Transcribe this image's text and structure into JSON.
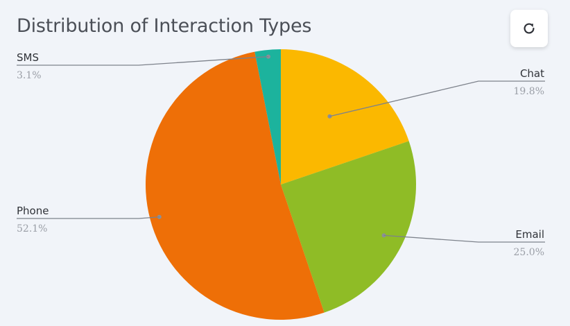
{
  "header": {
    "title": "Distribution of Interaction Types",
    "refresh_icon": "refresh-icon"
  },
  "chart_data": {
    "type": "pie",
    "title": "Distribution of Interaction Types",
    "start_angle_deg": 0,
    "direction": "clockwise",
    "legend": "none",
    "slices": [
      {
        "label": "Chat",
        "value": 19.8,
        "display": "19.8%",
        "color": "#fbb800"
      },
      {
        "label": "Email",
        "value": 25.0,
        "display": "25.0%",
        "color": "#8fbc26"
      },
      {
        "label": "Phone",
        "value": 52.1,
        "display": "52.1%",
        "color": "#ee6f07"
      },
      {
        "label": "SMS",
        "value": 3.1,
        "display": "3.1%",
        "color": "#1cb39d"
      }
    ]
  }
}
